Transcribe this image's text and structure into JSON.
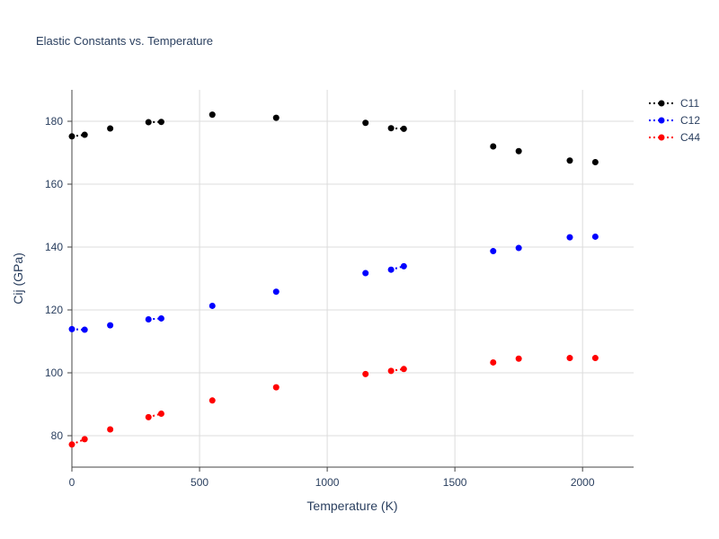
{
  "chart_data": {
    "type": "scatter",
    "title": "Elastic Constants vs. Temperature",
    "xlabel": "Temperature (K)",
    "ylabel": "Cij (GPa)",
    "xlim": [
      0,
      2200
    ],
    "ylim": [
      70,
      190
    ],
    "xticks": [
      0,
      500,
      1000,
      1500,
      2000
    ],
    "yticks": [
      80,
      100,
      120,
      140,
      160,
      180
    ],
    "grid": true,
    "legend_position": "top-right",
    "series": [
      {
        "name": "C11",
        "color": "#000000",
        "points": [
          {
            "x": 0,
            "y": 175.2
          },
          {
            "x": 50,
            "y": 175.7
          },
          {
            "x": 150,
            "y": 177.7
          },
          {
            "x": 300,
            "y": 179.7
          },
          {
            "x": 350,
            "y": 179.8
          },
          {
            "x": 550,
            "y": 182.1
          },
          {
            "x": 800,
            "y": 181.1
          },
          {
            "x": 1150,
            "y": 179.5
          },
          {
            "x": 1250,
            "y": 177.8
          },
          {
            "x": 1300,
            "y": 177.6
          },
          {
            "x": 1650,
            "y": 172.0
          },
          {
            "x": 1750,
            "y": 170.5
          },
          {
            "x": 1950,
            "y": 167.5
          },
          {
            "x": 2050,
            "y": 167.0
          }
        ],
        "dotted_segments": [
          [
            0,
            1
          ],
          [
            3,
            4
          ],
          [
            8,
            9
          ]
        ]
      },
      {
        "name": "C12",
        "color": "#0000ff",
        "points": [
          {
            "x": 0,
            "y": 113.9
          },
          {
            "x": 50,
            "y": 113.7
          },
          {
            "x": 150,
            "y": 115.1
          },
          {
            "x": 300,
            "y": 117.0
          },
          {
            "x": 350,
            "y": 117.3
          },
          {
            "x": 550,
            "y": 121.3
          },
          {
            "x": 800,
            "y": 125.8
          },
          {
            "x": 1150,
            "y": 131.7
          },
          {
            "x": 1250,
            "y": 132.8
          },
          {
            "x": 1300,
            "y": 133.9
          },
          {
            "x": 1650,
            "y": 138.7
          },
          {
            "x": 1750,
            "y": 139.7
          },
          {
            "x": 1950,
            "y": 143.1
          },
          {
            "x": 2050,
            "y": 143.3
          }
        ],
        "dotted_segments": [
          [
            0,
            1
          ],
          [
            3,
            4
          ],
          [
            8,
            9
          ]
        ]
      },
      {
        "name": "C44",
        "color": "#ff0000",
        "points": [
          {
            "x": 0,
            "y": 77.2
          },
          {
            "x": 50,
            "y": 78.9
          },
          {
            "x": 150,
            "y": 82.0
          },
          {
            "x": 300,
            "y": 85.9
          },
          {
            "x": 350,
            "y": 87.0
          },
          {
            "x": 550,
            "y": 91.2
          },
          {
            "x": 800,
            "y": 95.4
          },
          {
            "x": 1150,
            "y": 99.6
          },
          {
            "x": 1250,
            "y": 100.6
          },
          {
            "x": 1300,
            "y": 101.2
          },
          {
            "x": 1650,
            "y": 103.3
          },
          {
            "x": 1750,
            "y": 104.5
          },
          {
            "x": 1950,
            "y": 104.7
          },
          {
            "x": 2050,
            "y": 104.7
          }
        ],
        "dotted_segments": [
          [
            0,
            1
          ],
          [
            3,
            4
          ],
          [
            8,
            9
          ]
        ]
      }
    ]
  }
}
